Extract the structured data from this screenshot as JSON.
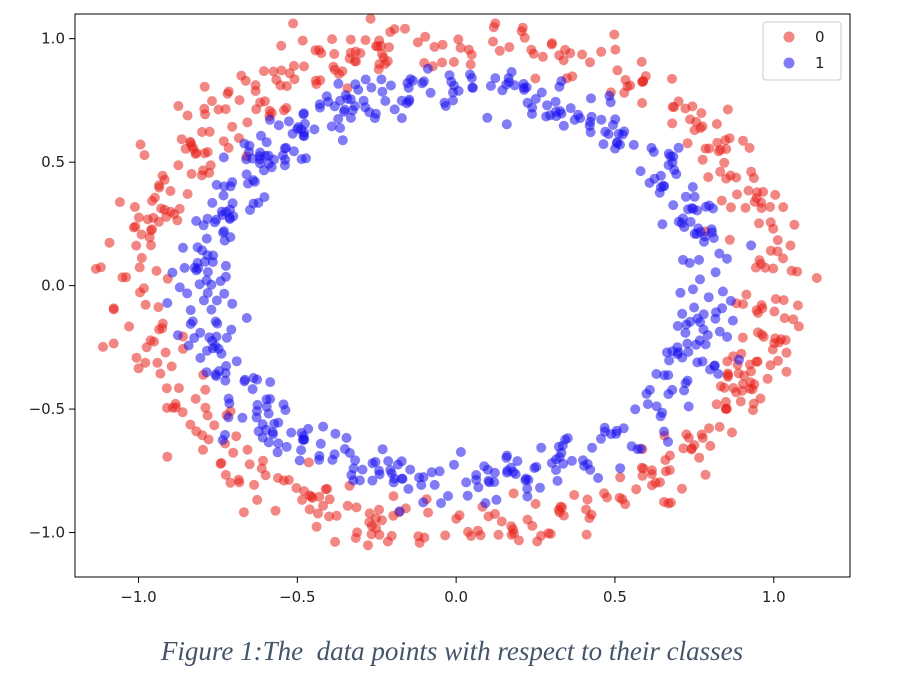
{
  "chart_data": {
    "type": "scatter",
    "title": "",
    "xlabel": "",
    "ylabel": "",
    "xlim": [
      -1.2,
      1.24
    ],
    "ylim": [
      -1.18,
      1.1
    ],
    "x_ticks": [
      -1.0,
      -0.5,
      0.0,
      0.5,
      1.0
    ],
    "x_tick_labels": [
      "−1.0",
      "−0.5",
      "0.0",
      "0.5",
      "1.0"
    ],
    "y_ticks": [
      -1.0,
      -0.5,
      0.0,
      0.5,
      1.0
    ],
    "y_tick_labels": [
      "−1.0",
      "−0.5",
      "0.0",
      "0.5",
      "1.0"
    ],
    "grid": false,
    "legend": "top-right",
    "marker_alpha": 0.55,
    "series": [
      {
        "name": "0",
        "color": "#e8221c",
        "shape": "ring",
        "center": [
          0.0,
          0.0
        ],
        "rx": 1.0,
        "ry": 0.98,
        "spread": 0.06,
        "count": 500
      },
      {
        "name": "1",
        "color": "#1a10ee",
        "shape": "ring",
        "center": [
          0.0,
          0.0
        ],
        "rx": 0.8,
        "ry": 0.8,
        "spread": 0.05,
        "count": 500
      }
    ]
  },
  "caption": "Figure 1:The  data points with respect to their classes"
}
